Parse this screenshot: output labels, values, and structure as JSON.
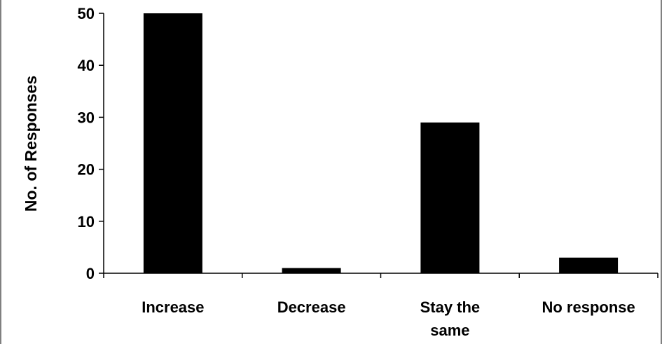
{
  "chart_data": {
    "type": "bar",
    "title": "",
    "xlabel": "",
    "ylabel": "No. of Responses",
    "categories": [
      "Increase",
      "Decrease",
      "Stay the same",
      "No response"
    ],
    "category_label_lines": [
      [
        "Increase"
      ],
      [
        "Decrease"
      ],
      [
        "Stay the",
        "same"
      ],
      [
        "No response"
      ]
    ],
    "values": [
      50,
      1,
      29,
      3
    ],
    "ylim": [
      0,
      50
    ],
    "yticks": [
      0,
      10,
      20,
      30,
      40,
      50
    ],
    "ytick_labels": [
      "0",
      "10",
      "20",
      "30",
      "40",
      "50"
    ],
    "bar_color": "#000000",
    "grid": false,
    "legend": "none"
  }
}
